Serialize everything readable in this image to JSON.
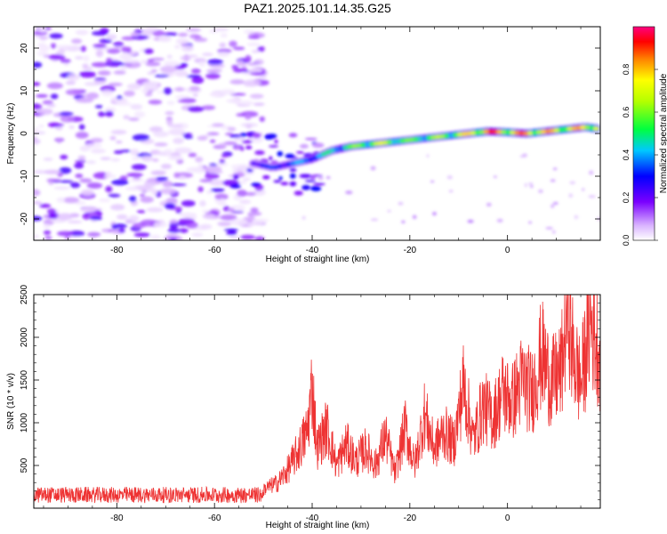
{
  "figure": {
    "title": "PAZ1.2025.101.14.35.G25"
  },
  "chart_data": [
    {
      "type": "heatmap",
      "xlabel": "Height of straight line (km)",
      "ylabel": "Frequency (Hz)",
      "xlim": [
        -97,
        19
      ],
      "ylim": [
        -25,
        25
      ],
      "x_ticks": [
        -80,
        -60,
        -40,
        -20,
        0
      ],
      "y_ticks": [
        -20,
        -10,
        0,
        10,
        20
      ],
      "colorbar": {
        "label": "Normalized spectral amplitude",
        "range": [
          0,
          1
        ],
        "ticks": [
          0.0,
          0.2,
          0.4,
          0.6,
          0.8
        ]
      },
      "ridge": {
        "x": [
          -52,
          -48,
          -44,
          -40,
          -36,
          -32,
          -28,
          -24,
          -20,
          -16,
          -12,
          -8,
          -4,
          0,
          4,
          8,
          12,
          16,
          19
        ],
        "frequency_hz": [
          -7,
          -8,
          -7,
          -6,
          -4,
          -3,
          -2.5,
          -2,
          -1.5,
          -1,
          -0.5,
          0,
          0.5,
          0.3,
          0,
          0.5,
          1,
          1.5,
          1
        ],
        "amplitude": [
          0.3,
          0.35,
          0.4,
          0.45,
          0.5,
          0.6,
          0.75,
          0.7,
          0.6,
          0.65,
          0.7,
          0.8,
          0.95,
          0.85,
          0.9,
          0.85,
          0.8,
          0.85,
          0.9
        ]
      },
      "noise_region": {
        "x_range": [
          -97,
          -50
        ],
        "frequency_range": [
          -25,
          25
        ],
        "amplitude_range": [
          0.02,
          0.25
        ]
      }
    },
    {
      "type": "line",
      "xlabel": "Height of straight line (km)",
      "ylabel": "SNR (10 * v/v)",
      "xlim": [
        -97,
        19
      ],
      "ylim": [
        0,
        2500
      ],
      "x_ticks": [
        -80,
        -60,
        -40,
        -20,
        0
      ],
      "y_ticks": [
        500,
        1000,
        1500,
        2000,
        2500
      ],
      "series": [
        {
          "color": "#ee3333",
          "x": [
            -97,
            -90,
            -80,
            -70,
            -60,
            -55,
            -50,
            -47,
            -45,
            -43,
            -41,
            -40,
            -39,
            -37,
            -35,
            -33,
            -31,
            -29,
            -27,
            -25,
            -23,
            -21,
            -19,
            -17,
            -15,
            -13,
            -11,
            -9,
            -7,
            -5,
            -3,
            -1,
            1,
            3,
            5,
            7,
            9,
            11,
            12.5,
            13,
            15,
            17,
            19
          ],
          "y": [
            150,
            150,
            150,
            160,
            160,
            170,
            220,
            300,
            450,
            650,
            900,
            1450,
            700,
            950,
            500,
            750,
            550,
            700,
            500,
            850,
            400,
            950,
            500,
            1100,
            700,
            900,
            750,
            1450,
            800,
            1200,
            1050,
            1350,
            1250,
            1500,
            1350,
            1800,
            1450,
            1600,
            2500,
            1900,
            1450,
            2200,
            1800
          ]
        }
      ]
    }
  ]
}
